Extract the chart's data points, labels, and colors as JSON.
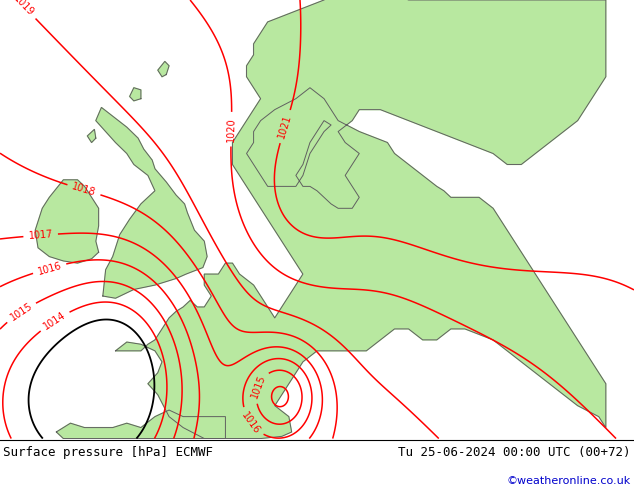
{
  "title_left": "Surface pressure [hPa] ECMWF",
  "title_right": "Tu 25-06-2024 00:00 UTC (00+72)",
  "credit": "©weatheronline.co.uk",
  "bg_color": "#d0d0d0",
  "land_green_color": "#b8e8a0",
  "contour_color": "#ff0000",
  "coast_color": "#606060",
  "bottom_bar_color": "#ffffff",
  "figsize": [
    6.34,
    4.9
  ],
  "dpi": 100,
  "lon_min": -13,
  "lon_max": 32,
  "lat_min": 43.5,
  "lat_max": 63.5
}
